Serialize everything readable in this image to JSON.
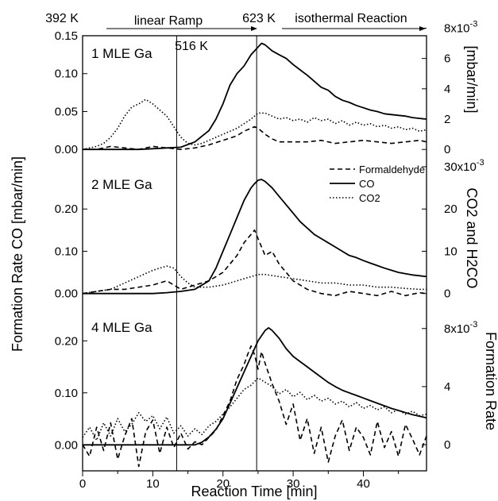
{
  "chart_data": {
    "type": "line",
    "x_label": "Reaction Time [min]",
    "left_axis_label": "Formation Rate CO [mbar/min]",
    "right_axis_labels": [
      "[mbar/min]",
      "CO2 and H2CO",
      "Formation Rate"
    ],
    "x_ticks": [
      0,
      10,
      20,
      30,
      40
    ],
    "xlim": [
      0,
      49
    ],
    "vertical_lines_x": [
      13.4,
      24.8
    ],
    "header": {
      "temp_start": "392 K",
      "ramp_label": "linear Ramp",
      "temp_mid": "516 K",
      "temp_end": "623 K",
      "isothermal_label": "isothermal Reaction"
    },
    "legend": [
      "Formaldehyde",
      "CO",
      "CO2"
    ],
    "panels": [
      {
        "label": "1 MLE Ga",
        "left_ylim": [
          -0.005,
          0.15
        ],
        "left_ticks": [
          "0.00",
          "0.05",
          "0.10",
          "0.15"
        ],
        "left_tick_values": [
          0,
          0.05,
          0.1,
          0.15
        ],
        "right_ylim": [
          -0.00025,
          0.0075
        ],
        "right_ticks": [
          "0",
          "2",
          "4",
          "6",
          "8x10-3"
        ],
        "right_tick_values": [
          0,
          0.002,
          0.004,
          0.006,
          0.008
        ],
        "series": [
          {
            "name": "CO",
            "axis": "left",
            "style": "solid",
            "x": [
              0,
              2,
              4,
              6,
              8,
              10,
              12,
              14,
              16,
              18,
              19,
              20,
              21,
              22,
              23,
              24,
              24.5,
              25,
              25.5,
              26,
              27,
              28,
              29,
              30,
              31,
              32,
              33,
              34,
              35,
              36,
              37,
              38,
              39,
              40,
              41,
              42,
              43,
              44,
              45,
              46,
              47,
              48,
              49
            ],
            "y": [
              0,
              0,
              0,
              0,
              0,
              0.001,
              0.002,
              0.003,
              0.01,
              0.025,
              0.04,
              0.06,
              0.085,
              0.1,
              0.11,
              0.125,
              0.13,
              0.135,
              0.14,
              0.138,
              0.13,
              0.125,
              0.12,
              0.112,
              0.105,
              0.098,
              0.09,
              0.082,
              0.078,
              0.07,
              0.065,
              0.062,
              0.058,
              0.055,
              0.052,
              0.05,
              0.047,
              0.046,
              0.045,
              0.044,
              0.042,
              0.041,
              0.04
            ]
          },
          {
            "name": "CO2",
            "axis": "right",
            "style": "dotted",
            "x": [
              0,
              1,
              2,
              3,
              4,
              5,
              6,
              7,
              8,
              9,
              10,
              11,
              12,
              13,
              14,
              15,
              16,
              17,
              18,
              19,
              20,
              21,
              22,
              23,
              24,
              25,
              26,
              27,
              28,
              29,
              30,
              31,
              32,
              33,
              34,
              35,
              36,
              37,
              38,
              39,
              40,
              41,
              42,
              43,
              44,
              45,
              46,
              47,
              48,
              49
            ],
            "y": [
              0,
              0.0001,
              0.0002,
              0.0004,
              0.0008,
              0.0014,
              0.0022,
              0.0028,
              0.003,
              0.0033,
              0.003,
              0.0026,
              0.0022,
              0.0015,
              0.0008,
              0.0004,
              0.0003,
              0.0004,
              0.0006,
              0.0008,
              0.001,
              0.0012,
              0.0014,
              0.0017,
              0.002,
              0.0024,
              0.0024,
              0.0022,
              0.002,
              0.0021,
              0.0019,
              0.002,
              0.0018,
              0.0021,
              0.0019,
              0.002,
              0.0017,
              0.0019,
              0.0016,
              0.0018,
              0.0016,
              0.0017,
              0.0015,
              0.0016,
              0.0014,
              0.0015,
              0.0013,
              0.0014,
              0.0012,
              0.0013
            ]
          },
          {
            "name": "Formaldehyde",
            "axis": "right",
            "style": "dashed",
            "x": [
              0,
              2,
              4,
              6,
              8,
              10,
              12,
              14,
              16,
              18,
              20,
              22,
              23,
              24,
              24.5,
              25,
              26,
              27,
              28,
              30,
              32,
              34,
              36,
              38,
              40,
              42,
              44,
              46,
              48,
              49
            ],
            "y": [
              0,
              0,
              0.0002,
              0.0001,
              0,
              0.0002,
              0.0001,
              0,
              0.0001,
              0.0003,
              0.0006,
              0.0009,
              0.0012,
              0.0014,
              0.0015,
              0.0014,
              0.001,
              0.0007,
              0.0005,
              0.0005,
              0.0005,
              0.0006,
              0.0004,
              0.0005,
              0.0006,
              0.0005,
              0.0004,
              0.0005,
              0.0006,
              0.0005
            ]
          }
        ]
      },
      {
        "label": "2 MLE Ga",
        "left_ylim": [
          -0.01,
          0.3
        ],
        "left_ticks": [
          "0.00",
          "0.10",
          "0.20"
        ],
        "left_tick_values": [
          0,
          0.1,
          0.2
        ],
        "right_ylim": [
          -0.001,
          0.03
        ],
        "right_ticks": [
          "0",
          "10",
          "20",
          "30x10-3"
        ],
        "right_tick_values": [
          0,
          0.01,
          0.02,
          0.03
        ],
        "series": [
          {
            "name": "CO",
            "axis": "left",
            "style": "solid",
            "x": [
              0,
              2,
              4,
              6,
              8,
              10,
              12,
              14,
              16,
              18,
              19,
              20,
              21,
              22,
              23,
              24,
              24.5,
              25,
              25.5,
              26,
              27,
              28,
              29,
              30,
              31,
              32,
              33,
              34,
              35,
              36,
              37,
              38,
              39,
              40,
              41,
              42,
              43,
              44,
              45,
              46,
              47,
              48,
              49
            ],
            "y": [
              0,
              0,
              0,
              0,
              0,
              0,
              0.002,
              0.005,
              0.01,
              0.03,
              0.06,
              0.1,
              0.14,
              0.18,
              0.22,
              0.25,
              0.26,
              0.268,
              0.27,
              0.265,
              0.25,
              0.23,
              0.21,
              0.19,
              0.17,
              0.155,
              0.14,
              0.13,
              0.12,
              0.11,
              0.1,
              0.09,
              0.085,
              0.078,
              0.072,
              0.066,
              0.06,
              0.055,
              0.05,
              0.047,
              0.044,
              0.042,
              0.04
            ]
          },
          {
            "name": "CO2",
            "axis": "right",
            "style": "dotted",
            "x": [
              0,
              2,
              4,
              6,
              8,
              10,
              11,
              12,
              13,
              14,
              15,
              16,
              18,
              20,
              22,
              24,
              25,
              26,
              28,
              30,
              32,
              34,
              36,
              38,
              40,
              42,
              44,
              46,
              48,
              49
            ],
            "y": [
              0,
              0.0005,
              0.001,
              0.0025,
              0.004,
              0.0055,
              0.006,
              0.0065,
              0.006,
              0.004,
              0.0025,
              0.0015,
              0.0015,
              0.002,
              0.003,
              0.004,
              0.0045,
              0.0045,
              0.004,
              0.0035,
              0.003,
              0.0025,
              0.0025,
              0.002,
              0.002,
              0.0015,
              0.0015,
              0.0012,
              0.001,
              0.001
            ]
          },
          {
            "name": "Formaldehyde",
            "axis": "right",
            "style": "dashed",
            "x": [
              0,
              2,
              4,
              6,
              8,
              10,
              12,
              13,
              14,
              16,
              18,
              20,
              21,
              22,
              23,
              24,
              24.5,
              25,
              25.5,
              26,
              27,
              28,
              29,
              30,
              31,
              32,
              34,
              36,
              38,
              40,
              42,
              44,
              46,
              48,
              49
            ],
            "y": [
              0,
              0.0005,
              0.001,
              0.001,
              0.0015,
              0.002,
              0.003,
              0.002,
              0.001,
              0.002,
              0.003,
              0.005,
              0.007,
              0.009,
              0.012,
              0.014,
              0.015,
              0.013,
              0.011,
              0.009,
              0.01,
              0.007,
              0.005,
              0.003,
              0.002,
              0.001,
              0,
              -0.0005,
              0.0005,
              0,
              -0.0005,
              0.0005,
              -0.0005,
              0.0002,
              0
            ]
          }
        ]
      },
      {
        "label": "4 MLE Ga",
        "left_ylim": [
          -0.05,
          0.26
        ],
        "left_ticks": [
          "0.00",
          "0.10",
          "0.20"
        ],
        "left_tick_values": [
          0,
          0.1,
          0.2
        ],
        "right_ylim": [
          -0.0018,
          0.0093
        ],
        "right_ticks": [
          "0",
          "4",
          "8x10-3"
        ],
        "right_tick_values": [
          0,
          0.004,
          0.008
        ],
        "series": [
          {
            "name": "CO",
            "axis": "left",
            "style": "solid",
            "x": [
              0,
              2,
              4,
              6,
              8,
              10,
              12,
              14,
              16,
              17,
              18,
              19,
              20,
              21,
              22,
              23,
              24,
              25,
              26,
              26.5,
              27,
              28,
              29,
              30,
              31,
              32,
              33,
              34,
              35,
              36,
              37,
              38,
              39,
              40,
              41,
              42,
              43,
              44,
              45,
              46,
              47,
              48,
              49
            ],
            "y": [
              0,
              0,
              0,
              0,
              0,
              0,
              0,
              0,
              0,
              0.005,
              0.015,
              0.03,
              0.05,
              0.08,
              0.11,
              0.14,
              0.17,
              0.2,
              0.22,
              0.225,
              0.22,
              0.205,
              0.185,
              0.17,
              0.16,
              0.15,
              0.14,
              0.13,
              0.12,
              0.112,
              0.105,
              0.1,
              0.095,
              0.09,
              0.085,
              0.08,
              0.075,
              0.07,
              0.066,
              0.062,
              0.058,
              0.055,
              0.052
            ]
          },
          {
            "name": "CO2",
            "axis": "right",
            "style": "dotted",
            "x": [
              0,
              1,
              2,
              3,
              4,
              5,
              6,
              7,
              8,
              9,
              10,
              11,
              12,
              13,
              14,
              15,
              16,
              17,
              18,
              19,
              20,
              21,
              22,
              23,
              24,
              25,
              26,
              27,
              28,
              29,
              30,
              31,
              32,
              33,
              34,
              35,
              36,
              37,
              38,
              39,
              40,
              41,
              42,
              43,
              44,
              45,
              46,
              47,
              48,
              49
            ],
            "y": [
              0.0005,
              0.0012,
              0.0003,
              0.0015,
              0.0006,
              0.0018,
              0.0009,
              0.0014,
              0.0022,
              0.0016,
              0.002,
              0.0011,
              0.0019,
              0.0008,
              0.0013,
              0.0006,
              0.0011,
              0.0007,
              0.0013,
              0.0016,
              0.0021,
              0.0026,
              0.0032,
              0.0038,
              0.0041,
              0.0046,
              0.0043,
              0.004,
              0.0035,
              0.0038,
              0.0033,
              0.0036,
              0.0031,
              0.0034,
              0.003,
              0.0032,
              0.0028,
              0.003,
              0.0026,
              0.0029,
              0.0025,
              0.0027,
              0.0024,
              0.0026,
              0.0022,
              0.0024,
              0.0021,
              0.0023,
              0.002,
              0.0021
            ]
          },
          {
            "name": "Formaldehyde",
            "axis": "right",
            "style": "dashed",
            "x": [
              0,
              1,
              2,
              3,
              4,
              5,
              6,
              7,
              8,
              9,
              10,
              11,
              12,
              13,
              14,
              15,
              16,
              17,
              18,
              19,
              20,
              21,
              22,
              23,
              23.5,
              24,
              24.5,
              25,
              25.5,
              26,
              27,
              28,
              29,
              30,
              31,
              32,
              33,
              34,
              35,
              36,
              37,
              38,
              39,
              40,
              41,
              42,
              43,
              44,
              45,
              46,
              47,
              48,
              49
            ],
            "y": [
              0,
              -0.0008,
              0.0012,
              -0.0004,
              0.0015,
              -0.001,
              0.0006,
              0.0018,
              -0.0015,
              0.0009,
              0.0017,
              -0.0006,
              0.0012,
              -0.0002,
              0.0008,
              -0.0003,
              0.0002,
              0,
              0.0005,
              0.001,
              0.002,
              0.003,
              0.0045,
              0.0055,
              0.0062,
              0.0068,
              0.0062,
              0.0052,
              0.0064,
              0.0056,
              0.0042,
              0.003,
              0.0014,
              0.0028,
              0.0003,
              0.0018,
              -0.0006,
              0.0012,
              -0.0012,
              0.0006,
              0.0017,
              -0.0004,
              0.0012,
              0.0005,
              -0.0007,
              0.0016,
              -0.0002,
              0.0009,
              -0.0008,
              0.0014,
              0.0004,
              -0.0007,
              0.0006
            ]
          }
        ]
      }
    ]
  }
}
